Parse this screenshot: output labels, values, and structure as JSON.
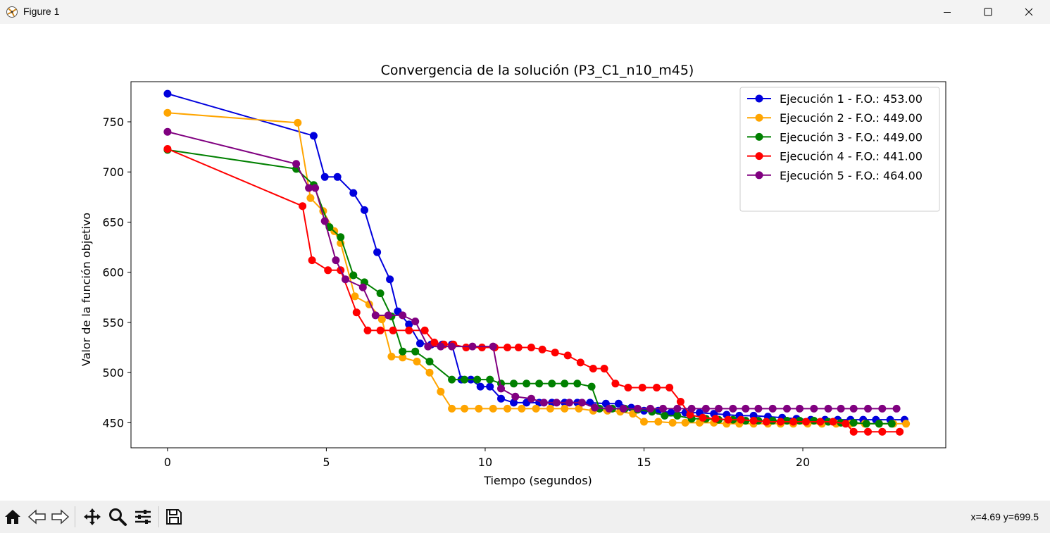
{
  "window": {
    "title": "Figure 1",
    "icons": [
      "matplotlib-icon",
      "minimize-icon",
      "maximize-icon",
      "close-icon"
    ]
  },
  "toolbar": {
    "buttons": [
      "home-icon",
      "back-icon",
      "forward-icon",
      "pan-icon",
      "zoom-icon",
      "configure-subplots-icon",
      "save-icon"
    ],
    "coords": "x=4.69 y=699.5"
  },
  "chart_data": {
    "type": "line",
    "title": "Convergencia de la solución (P3_C1_n10_m45)",
    "xlabel": "Tiempo (segundos)",
    "ylabel": "Valor de la función objetivo",
    "xlim": [
      -1.15,
      24.5
    ],
    "ylim": [
      425,
      790
    ],
    "xticks": [
      0,
      5,
      10,
      15,
      20
    ],
    "yticks": [
      450,
      500,
      550,
      600,
      650,
      700,
      750
    ],
    "grid": false,
    "legend_position": "top-right",
    "marker": "circle",
    "series": [
      {
        "name": "Ejecución 1 - F.O.: 453.00",
        "color": "#0000dd",
        "points": [
          [
            0,
            778
          ],
          [
            4.6,
            736
          ],
          [
            4.95,
            695
          ],
          [
            5.35,
            695
          ],
          [
            5.85,
            679
          ],
          [
            6.2,
            662
          ],
          [
            6.6,
            620
          ],
          [
            7.0,
            593
          ],
          [
            7.25,
            561
          ],
          [
            7.6,
            548
          ],
          [
            7.95,
            529
          ],
          [
            8.3,
            528
          ],
          [
            8.65,
            528
          ],
          [
            8.95,
            528
          ],
          [
            9.25,
            493
          ],
          [
            9.55,
            493
          ],
          [
            9.85,
            486
          ],
          [
            10.15,
            486
          ],
          [
            10.5,
            474
          ],
          [
            10.9,
            470
          ],
          [
            11.3,
            470
          ],
          [
            11.7,
            470
          ],
          [
            12.1,
            470
          ],
          [
            12.5,
            470
          ],
          [
            12.9,
            470
          ],
          [
            13.3,
            470
          ],
          [
            13.8,
            469
          ],
          [
            14.2,
            469
          ],
          [
            14.6,
            465
          ],
          [
            15.0,
            462
          ],
          [
            15.45,
            462
          ],
          [
            15.85,
            460
          ],
          [
            16.3,
            460
          ],
          [
            16.75,
            460
          ],
          [
            17.2,
            459
          ],
          [
            17.6,
            458
          ],
          [
            18.0,
            457
          ],
          [
            18.45,
            457
          ],
          [
            18.9,
            456
          ],
          [
            19.35,
            455
          ],
          [
            19.8,
            454
          ],
          [
            20.25,
            453
          ],
          [
            20.7,
            453
          ],
          [
            21.1,
            453
          ],
          [
            21.5,
            453
          ],
          [
            21.9,
            453
          ],
          [
            22.3,
            453
          ],
          [
            22.75,
            453
          ],
          [
            23.2,
            453
          ]
        ]
      },
      {
        "name": "Ejecución 2 - F.O.: 449.00",
        "color": "#ffa500",
        "points": [
          [
            0,
            759
          ],
          [
            4.1,
            749
          ],
          [
            4.5,
            674
          ],
          [
            4.9,
            661
          ],
          [
            5.25,
            641
          ],
          [
            5.45,
            629
          ],
          [
            5.9,
            576
          ],
          [
            6.35,
            568
          ],
          [
            6.75,
            553
          ],
          [
            7.05,
            516
          ],
          [
            7.4,
            515
          ],
          [
            7.85,
            511
          ],
          [
            8.25,
            500
          ],
          [
            8.6,
            481
          ],
          [
            8.95,
            464
          ],
          [
            9.35,
            464
          ],
          [
            9.8,
            464
          ],
          [
            10.25,
            464
          ],
          [
            10.7,
            464
          ],
          [
            11.15,
            464
          ],
          [
            11.6,
            464
          ],
          [
            12.05,
            464
          ],
          [
            12.5,
            464
          ],
          [
            12.95,
            464
          ],
          [
            13.4,
            462
          ],
          [
            13.85,
            462
          ],
          [
            14.25,
            461
          ],
          [
            14.65,
            459
          ],
          [
            15.0,
            451
          ],
          [
            15.45,
            451
          ],
          [
            15.9,
            450
          ],
          [
            16.3,
            450
          ],
          [
            16.75,
            450
          ],
          [
            17.2,
            450
          ],
          [
            17.6,
            449
          ],
          [
            18.0,
            449
          ],
          [
            18.45,
            449
          ],
          [
            18.9,
            449
          ],
          [
            19.3,
            449
          ],
          [
            19.7,
            449
          ],
          [
            20.15,
            449
          ],
          [
            20.6,
            449
          ],
          [
            21.05,
            449
          ],
          [
            21.5,
            449
          ],
          [
            21.95,
            449
          ],
          [
            22.4,
            449
          ],
          [
            22.85,
            449
          ],
          [
            23.25,
            449
          ]
        ]
      },
      {
        "name": "Ejecución 3 - F.O.: 449.00",
        "color": "#008000",
        "points": [
          [
            0,
            722
          ],
          [
            4.05,
            703
          ],
          [
            4.6,
            687
          ],
          [
            5.1,
            645
          ],
          [
            5.45,
            635
          ],
          [
            5.85,
            597
          ],
          [
            6.2,
            590
          ],
          [
            6.7,
            579
          ],
          [
            7.05,
            556
          ],
          [
            7.4,
            521
          ],
          [
            7.8,
            521
          ],
          [
            8.25,
            511
          ],
          [
            8.95,
            493
          ],
          [
            9.35,
            493
          ],
          [
            9.75,
            493
          ],
          [
            10.15,
            493
          ],
          [
            10.5,
            489
          ],
          [
            10.9,
            489
          ],
          [
            11.3,
            489
          ],
          [
            11.7,
            489
          ],
          [
            12.1,
            489
          ],
          [
            12.5,
            489
          ],
          [
            12.9,
            489
          ],
          [
            13.35,
            486
          ],
          [
            13.6,
            464
          ],
          [
            14.0,
            464
          ],
          [
            14.4,
            464
          ],
          [
            14.8,
            463
          ],
          [
            15.25,
            461
          ],
          [
            15.65,
            457
          ],
          [
            16.05,
            457
          ],
          [
            16.5,
            454
          ],
          [
            16.95,
            454
          ],
          [
            17.35,
            453
          ],
          [
            17.8,
            453
          ],
          [
            18.2,
            452
          ],
          [
            18.6,
            452
          ],
          [
            19.05,
            452
          ],
          [
            19.5,
            452
          ],
          [
            19.9,
            452
          ],
          [
            20.35,
            452
          ],
          [
            20.8,
            451
          ],
          [
            21.2,
            450
          ],
          [
            21.6,
            450
          ],
          [
            22.0,
            449
          ],
          [
            22.4,
            449
          ],
          [
            22.8,
            449
          ]
        ]
      },
      {
        "name": "Ejecución 4 - F.O.: 441.00",
        "color": "#ff0000",
        "points": [
          [
            0,
            723
          ],
          [
            4.25,
            666
          ],
          [
            4.55,
            612
          ],
          [
            5.05,
            602
          ],
          [
            5.45,
            602
          ],
          [
            5.95,
            560
          ],
          [
            6.3,
            542
          ],
          [
            6.7,
            542
          ],
          [
            7.1,
            542
          ],
          [
            7.6,
            542
          ],
          [
            8.1,
            542
          ],
          [
            8.4,
            530
          ],
          [
            8.7,
            528
          ],
          [
            9.0,
            528
          ],
          [
            9.4,
            525
          ],
          [
            9.9,
            525
          ],
          [
            10.3,
            525
          ],
          [
            10.7,
            525
          ],
          [
            11.05,
            525
          ],
          [
            11.45,
            525
          ],
          [
            11.8,
            523
          ],
          [
            12.2,
            520
          ],
          [
            12.6,
            517
          ],
          [
            13.0,
            510
          ],
          [
            13.4,
            504
          ],
          [
            13.75,
            504
          ],
          [
            14.1,
            489
          ],
          [
            14.5,
            485
          ],
          [
            14.95,
            485
          ],
          [
            15.4,
            485
          ],
          [
            15.8,
            485
          ],
          [
            16.15,
            471
          ],
          [
            16.45,
            458
          ],
          [
            16.85,
            455
          ],
          [
            17.25,
            454
          ],
          [
            17.65,
            453
          ],
          [
            18.05,
            453
          ],
          [
            18.45,
            452
          ],
          [
            18.85,
            451
          ],
          [
            19.3,
            451
          ],
          [
            19.7,
            451
          ],
          [
            20.1,
            451
          ],
          [
            20.55,
            451
          ],
          [
            20.95,
            451
          ],
          [
            21.35,
            449
          ],
          [
            21.6,
            441
          ],
          [
            22.05,
            441
          ],
          [
            22.5,
            441
          ],
          [
            23.05,
            441
          ]
        ]
      },
      {
        "name": "Ejecución 5 - F.O.: 464.00",
        "color": "#800080",
        "points": [
          [
            0,
            740
          ],
          [
            4.05,
            708
          ],
          [
            4.45,
            684
          ],
          [
            4.65,
            684
          ],
          [
            4.95,
            651
          ],
          [
            5.3,
            612
          ],
          [
            5.6,
            593
          ],
          [
            6.15,
            585
          ],
          [
            6.55,
            557
          ],
          [
            6.95,
            557
          ],
          [
            7.4,
            557
          ],
          [
            7.8,
            551
          ],
          [
            8.2,
            526
          ],
          [
            8.6,
            526
          ],
          [
            8.95,
            526
          ],
          [
            9.6,
            526
          ],
          [
            10.25,
            526
          ],
          [
            10.5,
            484
          ],
          [
            10.95,
            476
          ],
          [
            11.45,
            474
          ],
          [
            11.85,
            470
          ],
          [
            12.25,
            470
          ],
          [
            12.65,
            470
          ],
          [
            13.05,
            470
          ],
          [
            13.45,
            465
          ],
          [
            13.9,
            464
          ],
          [
            14.35,
            464
          ],
          [
            14.8,
            464
          ],
          [
            15.2,
            464
          ],
          [
            15.6,
            464
          ],
          [
            16.05,
            464
          ],
          [
            16.5,
            464
          ],
          [
            16.95,
            464
          ],
          [
            17.35,
            464
          ],
          [
            17.8,
            464
          ],
          [
            18.2,
            464
          ],
          [
            18.6,
            464
          ],
          [
            19.05,
            464
          ],
          [
            19.5,
            464
          ],
          [
            19.9,
            464
          ],
          [
            20.35,
            464
          ],
          [
            20.8,
            464
          ],
          [
            21.2,
            464
          ],
          [
            21.6,
            464
          ],
          [
            22.05,
            464
          ],
          [
            22.5,
            464
          ],
          [
            22.95,
            464
          ]
        ]
      }
    ]
  }
}
